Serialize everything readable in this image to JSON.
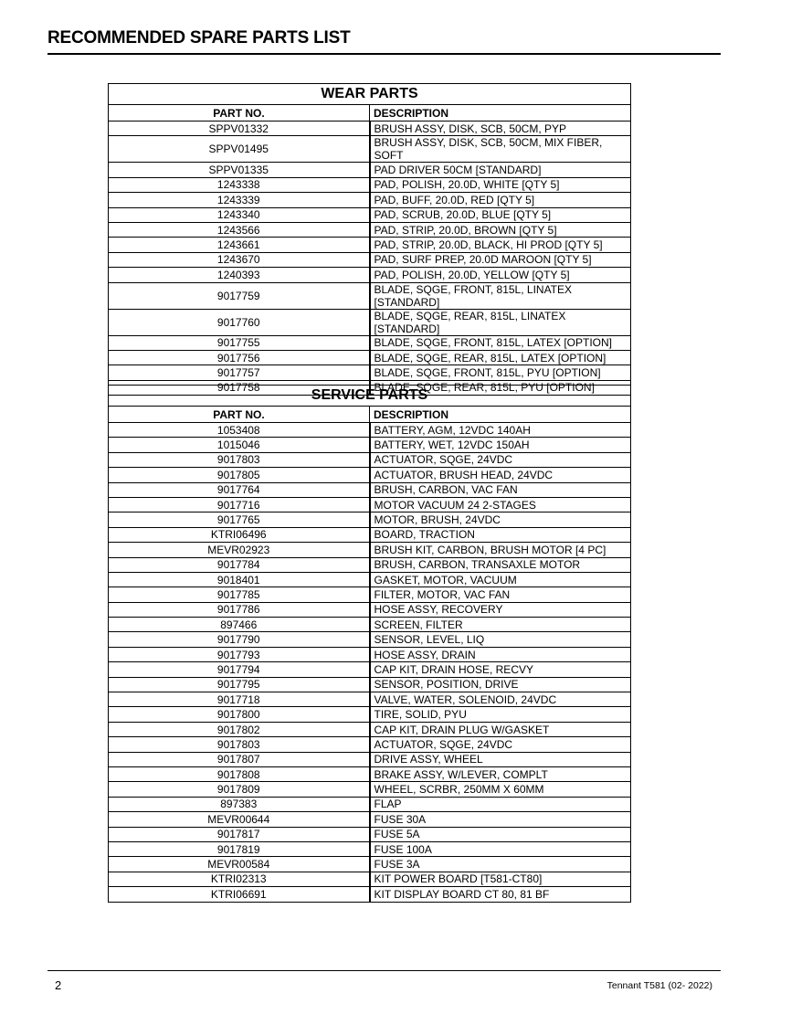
{
  "title": "RECOMMENDED SPARE PARTS LIST",
  "wear_parts": {
    "caption": "WEAR PARTS",
    "headers": [
      "PART NO.",
      "DESCRIPTION"
    ],
    "rows": [
      [
        "SPPV01332",
        "BRUSH ASSY, DISK, SCB, 50CM, PYP"
      ],
      [
        "SPPV01495",
        "BRUSH ASSY, DISK, SCB, 50CM, MIX FIBER, SOFT"
      ],
      [
        "SPPV01335",
        "PAD DRIVER 50CM [STANDARD]"
      ],
      [
        "1243338",
        "PAD, POLISH, 20.0D, WHITE [QTY 5]"
      ],
      [
        "1243339",
        "PAD, BUFF, 20.0D, RED [QTY 5]"
      ],
      [
        "1243340",
        "PAD, SCRUB, 20.0D, BLUE [QTY 5]"
      ],
      [
        "1243566",
        "PAD, STRIP, 20.0D, BROWN [QTY 5]"
      ],
      [
        "1243661",
        "PAD, STRIP, 20.0D, BLACK, HI PROD [QTY 5]"
      ],
      [
        "1243670",
        "PAD, SURF PREP, 20.0D MAROON [QTY 5]"
      ],
      [
        "1240393",
        "PAD, POLISH, 20.0D, YELLOW [QTY 5]"
      ],
      [
        "9017759",
        "BLADE, SQGE, FRONT, 815L, LINATEX [STANDARD]"
      ],
      [
        "9017760",
        "BLADE, SQGE, REAR, 815L, LINATEX [STANDARD]"
      ],
      [
        "9017755",
        "BLADE, SQGE, FRONT, 815L, LATEX [OPTION]"
      ],
      [
        "9017756",
        "BLADE, SQGE, REAR, 815L, LATEX [OPTION]"
      ],
      [
        "9017757",
        "BLADE, SQGE, FRONT, 815L, PYU [OPTION]"
      ],
      [
        "9017758",
        "BLADE, SQGE, REAR, 815L, PYU [OPTION]"
      ]
    ]
  },
  "service_parts": {
    "caption": "SERVICE PARTS",
    "headers": [
      "PART NO.",
      "DESCRIPTION"
    ],
    "rows": [
      [
        "1053408",
        "BATTERY, AGM, 12VDC 140AH"
      ],
      [
        "1015046",
        "BATTERY, WET, 12VDC 150AH"
      ],
      [
        "9017803",
        "ACTUATOR, SQGE, 24VDC"
      ],
      [
        "9017805",
        "ACTUATOR, BRUSH HEAD, 24VDC"
      ],
      [
        "9017764",
        "BRUSH, CARBON, VAC FAN"
      ],
      [
        "9017716",
        "MOTOR VACUUM 24 2-STAGES"
      ],
      [
        "9017765",
        "MOTOR, BRUSH, 24VDC"
      ],
      [
        "KTRI06496",
        "BOARD, TRACTION"
      ],
      [
        "MEVR02923",
        "BRUSH KIT, CARBON, BRUSH MOTOR [4 PC]"
      ],
      [
        "9017784",
        "BRUSH, CARBON, TRANSAXLE MOTOR"
      ],
      [
        "9018401",
        "GASKET, MOTOR, VACUUM"
      ],
      [
        "9017785",
        "FILTER, MOTOR, VAC FAN"
      ],
      [
        "9017786",
        "HOSE ASSY, RECOVERY"
      ],
      [
        "897466",
        "SCREEN, FILTER"
      ],
      [
        "9017790",
        "SENSOR, LEVEL, LIQ"
      ],
      [
        "9017793",
        "HOSE ASSY, DRAIN"
      ],
      [
        "9017794",
        "CAP KIT, DRAIN HOSE, RECVY"
      ],
      [
        "9017795",
        "SENSOR, POSITION, DRIVE"
      ],
      [
        "9017718",
        "VALVE, WATER, SOLENOID, 24VDC"
      ],
      [
        "9017800",
        "TIRE, SOLID, PYU"
      ],
      [
        "9017802",
        "CAP KIT, DRAIN PLUG W/GASKET"
      ],
      [
        "9017803",
        "ACTUATOR, SQGE, 24VDC"
      ],
      [
        "9017807",
        "DRIVE ASSY, WHEEL"
      ],
      [
        "9017808",
        "BRAKE ASSY, W/LEVER, COMPLT"
      ],
      [
        "9017809",
        "WHEEL, SCRBR, 250MM X 60MM"
      ],
      [
        "897383",
        "FLAP"
      ],
      [
        "MEVR00644",
        "FUSE 30A"
      ],
      [
        "9017817",
        "FUSE 5A"
      ],
      [
        "9017819",
        "FUSE 100A"
      ],
      [
        "MEVR00584",
        "FUSE 3A"
      ],
      [
        "KTRI02313",
        "KIT POWER BOARD [T581-CT80]"
      ],
      [
        "KTRI06691",
        "KIT DISPLAY BOARD CT 80, 81 BF"
      ]
    ]
  },
  "footer": {
    "page_number": "2",
    "doc_label": "Tennant T581  (02- 2022)"
  }
}
